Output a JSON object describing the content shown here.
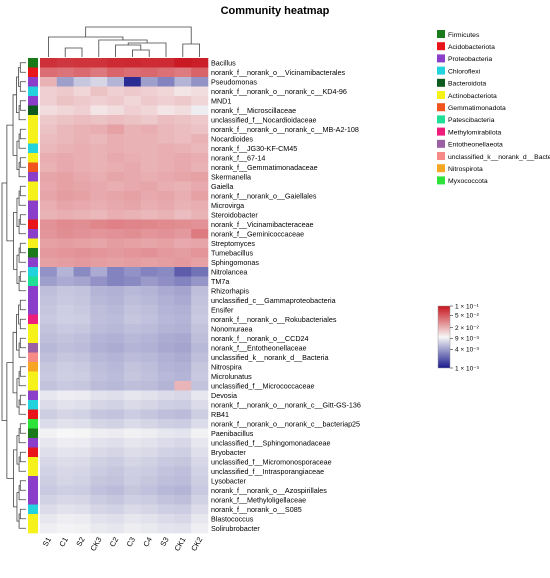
{
  "chart_data": {
    "type": "heatmap",
    "title": "Community heatmap",
    "columns": [
      "S1",
      "C1",
      "S2",
      "CK3",
      "C2",
      "C3",
      "C4",
      "S3",
      "CK1",
      "CK2"
    ],
    "rows": [
      {
        "name": "Bacillus",
        "group": "Firmicutes",
        "values": [
          0.075,
          0.07,
          0.072,
          0.074,
          0.08,
          0.082,
          0.078,
          0.08,
          0.095,
          0.09
        ]
      },
      {
        "name": "norank_f__norank_o__Vicinamibacterales",
        "group": "Acidobacteriota",
        "values": [
          0.04,
          0.038,
          0.042,
          0.036,
          0.044,
          0.04,
          0.043,
          0.039,
          0.035,
          0.045
        ]
      },
      {
        "name": "Pseudomonas",
        "group": "Proteobacteria",
        "values": [
          0.02,
          0.004,
          0.006,
          0.007,
          0.005,
          0.0012,
          0.004,
          0.003,
          0.005,
          0.0035
        ]
      },
      {
        "name": "norank_f__norank_o__norank_c__KD4-96",
        "group": "Chloroflexi",
        "values": [
          0.015,
          0.016,
          0.014,
          0.017,
          0.015,
          0.016,
          0.015,
          0.014,
          0.012,
          0.013
        ]
      },
      {
        "name": "MND1",
        "group": "Proteobacteria",
        "values": [
          0.015,
          0.017,
          0.016,
          0.015,
          0.016,
          0.014,
          0.016,
          0.015,
          0.016,
          0.014
        ]
      },
      {
        "name": "norank_f__Microscillaceae",
        "group": "Bacteroidota",
        "values": [
          0.013,
          0.014,
          0.015,
          0.012,
          0.013,
          0.015,
          0.014,
          0.012,
          0.013,
          0.009
        ]
      },
      {
        "name": "unclassified_f__Nocardioidaceae",
        "group": "Actinobacteriota",
        "values": [
          0.016,
          0.017,
          0.018,
          0.017,
          0.018,
          0.017,
          0.016,
          0.018,
          0.017,
          0.016
        ]
      },
      {
        "name": "norank_f__norank_o__norank_c__MB-A2-108",
        "group": "Actinobacteriota",
        "values": [
          0.017,
          0.019,
          0.02,
          0.021,
          0.024,
          0.02,
          0.021,
          0.019,
          0.018,
          0.017
        ]
      },
      {
        "name": "Nocardioides",
        "group": "Actinobacteriota",
        "values": [
          0.018,
          0.019,
          0.02,
          0.019,
          0.021,
          0.02,
          0.02,
          0.019,
          0.018,
          0.02
        ]
      },
      {
        "name": "norank_f__JG30-KF-CM45",
        "group": "Chloroflexi",
        "values": [
          0.019,
          0.02,
          0.021,
          0.02,
          0.021,
          0.02,
          0.02,
          0.021,
          0.02,
          0.019
        ]
      },
      {
        "name": "norank_f__67-14",
        "group": "Actinobacteriota",
        "values": [
          0.021,
          0.022,
          0.021,
          0.02,
          0.022,
          0.021,
          0.02,
          0.021,
          0.022,
          0.021
        ]
      },
      {
        "name": "norank_f__Gemmatimonadaceae",
        "group": "Gemmatimonadota",
        "values": [
          0.02,
          0.022,
          0.021,
          0.02,
          0.021,
          0.022,
          0.02,
          0.021,
          0.022,
          0.02
        ]
      },
      {
        "name": "Skermanella",
        "group": "Proteobacteria",
        "values": [
          0.023,
          0.024,
          0.022,
          0.021,
          0.023,
          0.022,
          0.021,
          0.022,
          0.023,
          0.024
        ]
      },
      {
        "name": "Gaiella",
        "group": "Actinobacteriota",
        "values": [
          0.022,
          0.024,
          0.023,
          0.022,
          0.021,
          0.022,
          0.023,
          0.021,
          0.02,
          0.022
        ]
      },
      {
        "name": "norank_f__norank_o__Gaiellales",
        "group": "Actinobacteriota",
        "values": [
          0.023,
          0.025,
          0.024,
          0.022,
          0.023,
          0.024,
          0.022,
          0.023,
          0.021,
          0.024
        ]
      },
      {
        "name": "Microvirga",
        "group": "Proteobacteria",
        "values": [
          0.021,
          0.023,
          0.022,
          0.021,
          0.022,
          0.023,
          0.021,
          0.022,
          0.02,
          0.021
        ]
      },
      {
        "name": "Steroidobacter",
        "group": "Proteobacteria",
        "values": [
          0.02,
          0.021,
          0.02,
          0.019,
          0.021,
          0.02,
          0.019,
          0.02,
          0.018,
          0.02
        ]
      },
      {
        "name": "norank_f__Vicinamibacteraceae",
        "group": "Acidobacteriota",
        "values": [
          0.028,
          0.03,
          0.029,
          0.031,
          0.033,
          0.032,
          0.031,
          0.03,
          0.029,
          0.028
        ]
      },
      {
        "name": "norank_f__Geminicoccaceae",
        "group": "Proteobacteria",
        "values": [
          0.027,
          0.029,
          0.028,
          0.027,
          0.028,
          0.029,
          0.027,
          0.028,
          0.026,
          0.035
        ]
      },
      {
        "name": "Streptomyces",
        "group": "Actinobacteriota",
        "values": [
          0.024,
          0.025,
          0.024,
          0.023,
          0.025,
          0.024,
          0.023,
          0.024,
          0.022,
          0.023
        ]
      },
      {
        "name": "Tumebacillus",
        "group": "Firmicutes",
        "values": [
          0.026,
          0.027,
          0.028,
          0.027,
          0.026,
          0.027,
          0.028,
          0.026,
          0.025,
          0.027
        ]
      },
      {
        "name": "Sphingomonas",
        "group": "Proteobacteria",
        "values": [
          0.024,
          0.025,
          0.026,
          0.025,
          0.024,
          0.025,
          0.024,
          0.025,
          0.026,
          0.024
        ]
      },
      {
        "name": "Nitrolancea",
        "group": "Chloroflexi",
        "values": [
          0.0035,
          0.005,
          0.0032,
          0.0045,
          0.003,
          0.0035,
          0.003,
          0.0032,
          0.002,
          0.0025
        ]
      },
      {
        "name": "TM7a",
        "group": "Patescibacteria",
        "values": [
          0.004,
          0.0045,
          0.0042,
          0.0035,
          0.003,
          0.0032,
          0.0038,
          0.0034,
          0.003,
          0.0036
        ]
      },
      {
        "name": "Rhizorhapis",
        "group": "Proteobacteria",
        "values": [
          0.0055,
          0.006,
          0.0058,
          0.005,
          0.0048,
          0.0052,
          0.005,
          0.0045,
          0.0042,
          0.0055
        ]
      },
      {
        "name": "unclassified_c__Gammaproteobacteria",
        "group": "Proteobacteria",
        "values": [
          0.0058,
          0.0062,
          0.006,
          0.0052,
          0.005,
          0.0055,
          0.0052,
          0.0048,
          0.0045,
          0.0058
        ]
      },
      {
        "name": "Ensifer",
        "group": "Proteobacteria",
        "values": [
          0.006,
          0.0065,
          0.0062,
          0.0055,
          0.0052,
          0.0058,
          0.0055,
          0.005,
          0.0048,
          0.006
        ]
      },
      {
        "name": "norank_f__norank_o__Rokubacteriales",
        "group": "Methylomirabilota",
        "values": [
          0.0062,
          0.0066,
          0.0064,
          0.0056,
          0.0054,
          0.006,
          0.0057,
          0.0052,
          0.005,
          0.0062
        ]
      },
      {
        "name": "Nonomuraea",
        "group": "Actinobacteriota",
        "values": [
          0.0058,
          0.0062,
          0.006,
          0.0054,
          0.0052,
          0.0056,
          0.0054,
          0.005,
          0.0048,
          0.0058
        ]
      },
      {
        "name": "norank_f__norank_o__CCD24",
        "group": "Actinobacteriota",
        "values": [
          0.0055,
          0.0058,
          0.0056,
          0.005,
          0.0048,
          0.0052,
          0.005,
          0.0046,
          0.0044,
          0.0055
        ]
      },
      {
        "name": "norank_f__Entotheonellaceae",
        "group": "Entotheonellaeota",
        "values": [
          0.0052,
          0.0056,
          0.0054,
          0.0048,
          0.0046,
          0.005,
          0.0048,
          0.0044,
          0.0042,
          0.0052
        ]
      },
      {
        "name": "unclassified_k__norank_d__Bacteria",
        "group": "unclassified_k__norank_d__Bacteria",
        "values": [
          0.0056,
          0.006,
          0.0058,
          0.0052,
          0.005,
          0.0054,
          0.0052,
          0.0048,
          0.0046,
          0.0056
        ]
      },
      {
        "name": "Nitrospira",
        "group": "Nitrospirota",
        "values": [
          0.006,
          0.0064,
          0.0062,
          0.0055,
          0.0052,
          0.0058,
          0.0055,
          0.005,
          0.0048,
          0.006
        ]
      },
      {
        "name": "Microlunatus",
        "group": "Actinobacteriota",
        "values": [
          0.0062,
          0.0066,
          0.0064,
          0.0057,
          0.0054,
          0.006,
          0.0057,
          0.0052,
          0.005,
          0.0062
        ]
      },
      {
        "name": "unclassified_f__Micrococcaceae",
        "group": "Actinobacteriota",
        "values": [
          0.0058,
          0.0062,
          0.006,
          0.0054,
          0.0052,
          0.0056,
          0.0054,
          0.005,
          0.0195,
          0.0058
        ]
      },
      {
        "name": "Devosia",
        "group": "Proteobacteria",
        "values": [
          0.0085,
          0.009,
          0.0088,
          0.008,
          0.0078,
          0.0084,
          0.008,
          0.0075,
          0.0072,
          0.0085
        ]
      },
      {
        "name": "norank_f__norank_o__norank_c__Gitt-GS-136",
        "group": "Chloroflexi",
        "values": [
          0.0075,
          0.008,
          0.0078,
          0.007,
          0.0068,
          0.0074,
          0.007,
          0.0066,
          0.0064,
          0.0075
        ]
      },
      {
        "name": "RB41",
        "group": "Acidobacteriota",
        "values": [
          0.0065,
          0.007,
          0.0068,
          0.006,
          0.0058,
          0.0064,
          0.006,
          0.0056,
          0.0054,
          0.0065
        ]
      },
      {
        "name": "norank_f__norank_o__norank_c__bacteriap25",
        "group": "Myxococcota",
        "values": [
          0.0075,
          0.008,
          0.0078,
          0.007,
          0.0068,
          0.0074,
          0.007,
          0.0066,
          0.0064,
          0.0075
        ]
      },
      {
        "name": "Paenibacillus",
        "group": "Firmicutes",
        "values": [
          0.0095,
          0.01,
          0.0098,
          0.009,
          0.0088,
          0.0094,
          0.009,
          0.0085,
          0.0082,
          0.0095
        ]
      },
      {
        "name": "unclassified_f__Sphingomonadaceae",
        "group": "Proteobacteria",
        "values": [
          0.0085,
          0.009,
          0.0088,
          0.008,
          0.0078,
          0.0084,
          0.008,
          0.0075,
          0.0072,
          0.0085
        ]
      },
      {
        "name": "Bryobacter",
        "group": "Acidobacteriota",
        "values": [
          0.0078,
          0.0082,
          0.008,
          0.0073,
          0.007,
          0.0076,
          0.0073,
          0.0068,
          0.0066,
          0.0078
        ]
      },
      {
        "name": "unclassified_f__Micromonosporaceae",
        "group": "Actinobacteriota",
        "values": [
          0.0072,
          0.0076,
          0.0074,
          0.0067,
          0.0064,
          0.007,
          0.0067,
          0.0062,
          0.006,
          0.0072
        ]
      },
      {
        "name": "unclassified_f__Intrasporangiaceae",
        "group": "Actinobacteriota",
        "values": [
          0.0068,
          0.0072,
          0.007,
          0.0063,
          0.006,
          0.0066,
          0.0063,
          0.0058,
          0.0056,
          0.0068
        ]
      },
      {
        "name": "Lysobacter",
        "group": "Proteobacteria",
        "values": [
          0.0065,
          0.007,
          0.0068,
          0.006,
          0.0058,
          0.0064,
          0.006,
          0.0056,
          0.0054,
          0.0065
        ]
      },
      {
        "name": "norank_f__norank_o__Azospirillales",
        "group": "Proteobacteria",
        "values": [
          0.0062,
          0.0066,
          0.0064,
          0.0057,
          0.0054,
          0.006,
          0.0057,
          0.0052,
          0.005,
          0.0062
        ]
      },
      {
        "name": "norank_f__Methyloligellaceae",
        "group": "Proteobacteria",
        "values": [
          0.0068,
          0.0072,
          0.007,
          0.0063,
          0.006,
          0.0066,
          0.0063,
          0.0058,
          0.0056,
          0.0068
        ]
      },
      {
        "name": "norank_f__norank_o__S085",
        "group": "Chloroflexi",
        "values": [
          0.0075,
          0.008,
          0.0078,
          0.007,
          0.0068,
          0.0074,
          0.007,
          0.0066,
          0.0064,
          0.0075
        ]
      },
      {
        "name": "Blastococcus",
        "group": "Actinobacteriota",
        "values": [
          0.0085,
          0.009,
          0.0088,
          0.008,
          0.0078,
          0.0084,
          0.008,
          0.0075,
          0.0072,
          0.0085
        ]
      },
      {
        "name": "Solirubrobacter",
        "group": "Actinobacteriota",
        "values": [
          0.0092,
          0.0096,
          0.0094,
          0.0086,
          0.0084,
          0.009,
          0.0086,
          0.0082,
          0.008,
          0.0092
        ]
      }
    ],
    "legend": [
      {
        "label": "Firmicutes",
        "color": "#1a7a1a"
      },
      {
        "label": "Acidobacteriota",
        "color": "#e8151b"
      },
      {
        "label": "Proteobacteria",
        "color": "#8b3ec9"
      },
      {
        "label": "Chloroflexi",
        "color": "#22d3dd"
      },
      {
        "label": "Bacteroidota",
        "color": "#0c5b1c"
      },
      {
        "label": "Actinobacteriota",
        "color": "#f7f11a"
      },
      {
        "label": "Gemmatimonadota",
        "color": "#f2541d"
      },
      {
        "label": "Patescibacteria",
        "color": "#1fde96"
      },
      {
        "label": "Methylomirabilota",
        "color": "#ee1c7b"
      },
      {
        "label": "Entotheonellaeota",
        "color": "#9b5fa3"
      },
      {
        "label": "unclassified_k__norank_d__Bacteria",
        "color": "#f58a86"
      },
      {
        "label": "Nitrospirota",
        "color": "#f6a622"
      },
      {
        "label": "Myxococcota",
        "color": "#2de33a"
      }
    ],
    "color_scale": {
      "type": "log",
      "min": 0.001,
      "max": 0.1,
      "colors": [
        "#1a1a8c",
        "#f7f7f7",
        "#c8141e"
      ],
      "ticks": [
        {
          "value": 0.1,
          "label": "1 × 10⁻¹"
        },
        {
          "value": 0.05,
          "label": "5 × 10⁻²"
        },
        {
          "value": 0.02,
          "label": "2 × 10⁻²"
        },
        {
          "value": 0.009,
          "label": "9 × 10⁻³"
        },
        {
          "value": 0.004,
          "label": "4 × 10⁻³"
        },
        {
          "value": 0.001,
          "label": "1 × 10⁻³"
        }
      ]
    }
  }
}
